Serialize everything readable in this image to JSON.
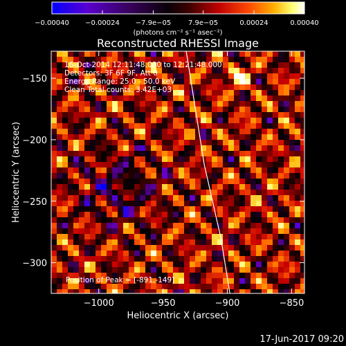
{
  "chart_data": {
    "type": "heatmap",
    "title": "Reconstructed RHESSI Image",
    "xlabel": "Heliocentric X (arcsec)",
    "ylabel": "Heliocentric Y (arcsec)",
    "xlim": [
      -1037,
      -840
    ],
    "ylim": [
      -325,
      -128
    ],
    "x_ticks": [
      -1000,
      -950,
      -900,
      -850
    ],
    "x_tick_labels": [
      "−1000",
      "−950",
      "−900",
      "−850"
    ],
    "y_ticks": [
      -150,
      -200,
      -250,
      -300
    ],
    "y_tick_labels": [
      "−150",
      "−200",
      "−250",
      "−300"
    ],
    "colorbar": {
      "min": -0.0004,
      "max": 0.0004,
      "tick_values": [
        -0.0004,
        -0.00024,
        -7.9e-05,
        7.9e-05,
        0.00024,
        0.0004
      ],
      "tick_labels": [
        "−0.00040",
        "−0.00024",
        "−7.9e−05",
        "7.9e−05",
        "0.00024",
        "0.00040"
      ],
      "unit_label": "(photons cm⁻² s⁻¹ asec⁻²)",
      "colors": [
        "#0000ff",
        "#6a00c8",
        "#2a0030",
        "#000000",
        "#5a0000",
        "#c80000",
        "#ff5a00",
        "#ffb400",
        "#ffff80",
        "#ffffff"
      ]
    },
    "annotations": [
      "16-Oct-2014 12:11:48.000 to 12:21:48.000",
      "Detectors: 3F 6F 9F, Att 0",
      "Energy Range: 25.0 - 50.0 keV",
      "Clean    Total counts: 3.42E+03"
    ],
    "peak_label": "Position of Peak = [-891,-149]",
    "peak_position": [
      -891,
      -149
    ],
    "limb_curve": [
      [
        -932,
        -128
      ],
      [
        -918,
        -220
      ],
      [
        -905,
        -280
      ],
      [
        -898,
        -325
      ]
    ]
  },
  "footer_date": "17-Jun-2017 09:20"
}
